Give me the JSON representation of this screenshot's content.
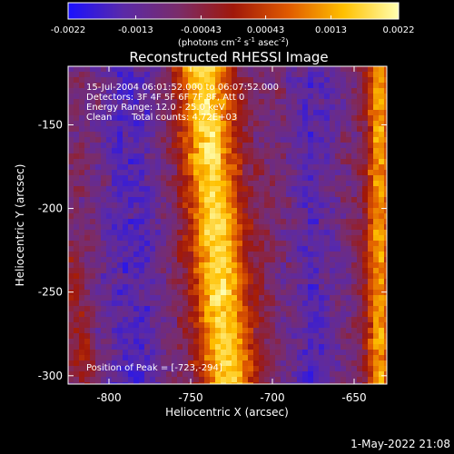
{
  "colorbar": {
    "tick_labels": [
      "-0.0022",
      "-0.0013",
      "-0.00043",
      "0.00043",
      "0.0013",
      "0.0022"
    ],
    "tick_values": [
      -0.0022,
      -0.0013,
      -0.00043,
      0.00043,
      0.0013,
      0.0022
    ],
    "range": [
      -0.0022,
      0.0022
    ],
    "units": "(photons cm",
    "units_exp1": "-2",
    "units_mid": " s",
    "units_exp2": "-1",
    "units_end": " asec",
    "units_exp3": "-2",
    "units_close": ")"
  },
  "title": "Reconstructed RHESSI Image",
  "info": {
    "line1": "15-Jul-2004 06:01:52.000 to 06:07:52.000",
    "line2": "Detectors: 3F 4F 5F 6F 7F 8F, Att 0",
    "line3": "Energy Range: 12.0 - 25.0 keV",
    "line4_method": "Clean",
    "line4_counts": "Total counts: 4.72E+03",
    "peak": "Position of Peak = [-723,-294]"
  },
  "x_axis": {
    "label": "Heliocentric X (arcsec)",
    "range": [
      -825,
      -630
    ],
    "tick_values": [
      -800,
      -750,
      -700,
      -650
    ],
    "tick_labels": [
      "-800",
      "-750",
      "-700",
      "-650"
    ]
  },
  "y_axis": {
    "label": "Heliocentric Y (arcsec)",
    "range": [
      -305,
      -115
    ],
    "tick_values": [
      -150,
      -200,
      -250,
      -300
    ],
    "tick_labels": [
      "-150",
      "-200",
      "-250",
      "-300"
    ]
  },
  "timestamp": "1-May-2022 21:08",
  "colormap": [
    "#1a10ff",
    "#5a2aa8",
    "#7a2c6a",
    "#a0180a",
    "#e05a00",
    "#ffc000",
    "#ffffb0"
  ]
}
